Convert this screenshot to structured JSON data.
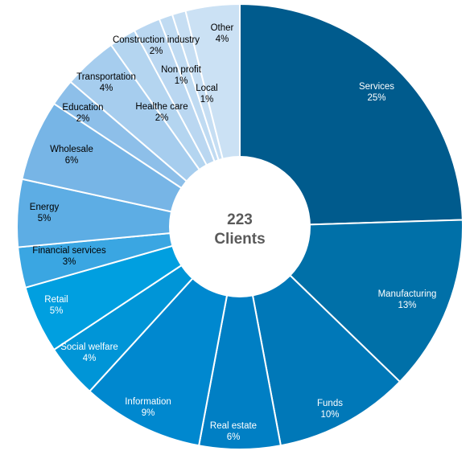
{
  "chart_data": {
    "type": "pie",
    "donut": true,
    "center_text": [
      "223",
      "Clients"
    ],
    "slices": [
      {
        "label": "Services",
        "value": 25,
        "value_text": "25%",
        "color": "#005b8d",
        "text_color": "#ffffff"
      },
      {
        "label": "Manufacturing",
        "value": 13,
        "value_text": "13%",
        "color": "#0070a8",
        "text_color": "#ffffff"
      },
      {
        "label": "Funds",
        "value": 10,
        "value_text": "10%",
        "color": "#0078b8",
        "text_color": "#ffffff"
      },
      {
        "label": "Real estate",
        "value": 6,
        "value_text": "6%",
        "color": "#007fc4",
        "text_color": "#ffffff"
      },
      {
        "label": "Information",
        "value": 9,
        "value_text": "9%",
        "color": "#0088cf",
        "text_color": "#ffffff"
      },
      {
        "label": "Social welfare",
        "value": 4,
        "value_text": "4%",
        "color": "#0095d7",
        "text_color": "#ffffff"
      },
      {
        "label": "Retail",
        "value": 5,
        "value_text": "5%",
        "color": "#009fe0",
        "text_color": "#ffffff"
      },
      {
        "label": "Financial services",
        "value": 3,
        "value_text": "3%",
        "color": "#3aa6e2",
        "text_color": "#000000"
      },
      {
        "label": "Energy",
        "value": 5,
        "value_text": "5%",
        "color": "#5dade4",
        "text_color": "#000000"
      },
      {
        "label": "Wholesale",
        "value": 6,
        "value_text": "6%",
        "color": "#77b5e6",
        "text_color": "#000000"
      },
      {
        "label": "Education",
        "value": 2,
        "value_text": "2%",
        "color": "#8dbfe9",
        "text_color": "#000000"
      },
      {
        "label": "Transportation",
        "value": 4,
        "value_text": "4%",
        "color": "#a6cdee",
        "text_color": "#000000"
      },
      {
        "label": "Healthe care",
        "value": 2,
        "value_text": "2%",
        "color": "#b4d5f0",
        "text_color": "#000000"
      },
      {
        "label": "Construction industry",
        "value": 2,
        "value_text": "2%",
        "color": "#bad7f1",
        "text_color": "#000000"
      },
      {
        "label": "Non profit",
        "value": 1,
        "value_text": "1%",
        "color": "#c0dbf2",
        "text_color": "#000000"
      },
      {
        "label": "Local",
        "value": 1,
        "value_text": "1%",
        "color": "#c6def3",
        "text_color": "#000000"
      },
      {
        "label": "Other",
        "value": 4,
        "value_text": "4%",
        "color": "#cbe1f4",
        "text_color": "#000000"
      }
    ]
  }
}
